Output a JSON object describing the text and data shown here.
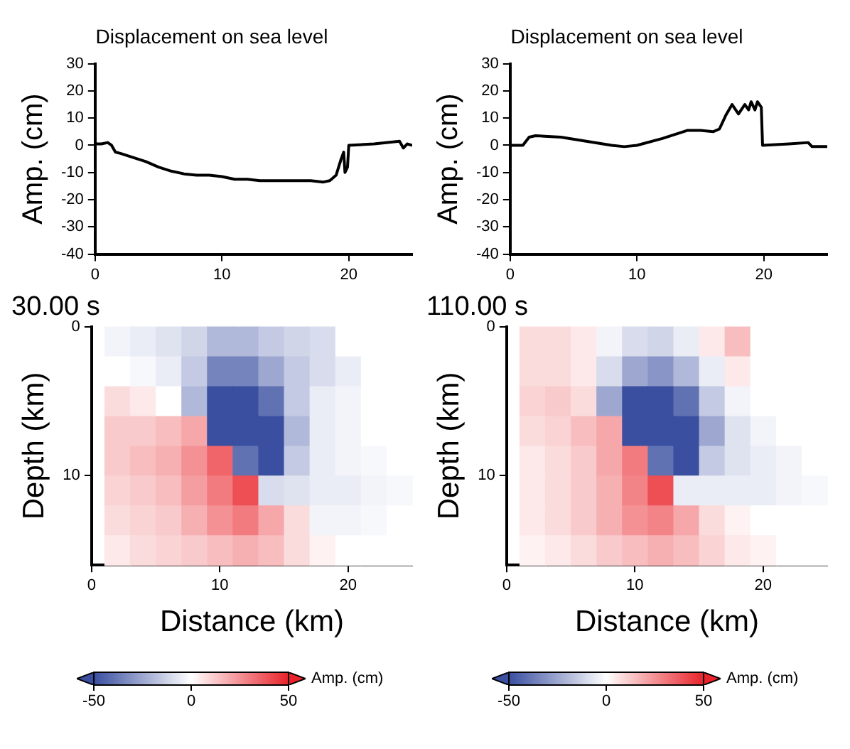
{
  "chart_data": [
    {
      "type": "line",
      "title": "Displacement on sea level",
      "ylabel": "Amp. (cm)",
      "color": "#000000",
      "xlim": [
        0,
        25
      ],
      "xticks": [
        0,
        10,
        20
      ],
      "ylim": [
        -40,
        30
      ],
      "yticks": [
        -40,
        -30,
        -20,
        -10,
        0,
        10,
        20,
        30
      ],
      "x": [
        0,
        0.5,
        1,
        1.3,
        1.6,
        2,
        3,
        4,
        5,
        6,
        7,
        8,
        9,
        10,
        11,
        12,
        13,
        14,
        15,
        16,
        17,
        18,
        18.5,
        19,
        19.4,
        19.6,
        19.7,
        19.9,
        20,
        22,
        24,
        24.3,
        24.6,
        25
      ],
      "values": [
        0.5,
        0.5,
        1,
        0,
        -2.5,
        -3,
        -4.5,
        -6,
        -8,
        -9.5,
        -10.5,
        -11,
        -11,
        -11.5,
        -12.5,
        -12.5,
        -13,
        -13,
        -13,
        -13,
        -13,
        -13.5,
        -13,
        -11,
        -5,
        -2.5,
        -10,
        -8,
        0,
        0.5,
        1.5,
        -1,
        0.5,
        0
      ]
    },
    {
      "type": "line",
      "title": "Displacement on sea level",
      "ylabel": "Amp. (cm)",
      "color": "#000000",
      "xlim": [
        0,
        25
      ],
      "xticks": [
        0,
        10,
        20
      ],
      "ylim": [
        -40,
        30
      ],
      "yticks": [
        -40,
        -30,
        -20,
        -10,
        0,
        10,
        20,
        30
      ],
      "x": [
        0,
        1,
        1.5,
        2,
        4,
        6,
        8,
        9,
        10,
        12,
        14,
        15,
        16,
        16.5,
        17,
        17.5,
        18,
        18.5,
        18.8,
        19,
        19.3,
        19.5,
        19.8,
        19.9,
        22,
        23.5,
        23.8,
        25
      ],
      "values": [
        0,
        0,
        3,
        3.5,
        3,
        1.5,
        0,
        -0.5,
        0,
        2.5,
        5.5,
        5.5,
        5,
        6,
        11,
        15,
        11.5,
        15,
        13,
        16,
        13,
        16,
        14,
        0,
        0.5,
        1,
        -0.5,
        -0.5
      ]
    },
    {
      "type": "heatmap",
      "title": "30.00 s",
      "xlabel": "Distance (km)",
      "ylabel": "Depth (km)",
      "clabel": "Amp. (cm)",
      "clim": [
        -50,
        50
      ],
      "cticks": [
        -50,
        0,
        50
      ],
      "xlim": [
        0,
        25
      ],
      "xticks": [
        0,
        10,
        20
      ],
      "ylim": [
        16,
        0
      ],
      "yticks": [
        0,
        10
      ],
      "x": [
        2,
        4,
        6,
        8,
        10,
        12,
        14,
        16,
        18,
        20,
        22,
        24
      ],
      "cells": [
        [
          -3,
          -5,
          -8,
          -12,
          -20,
          -20,
          -15,
          -12,
          -10,
          0,
          0,
          0
        ],
        [
          0,
          -2,
          -5,
          -15,
          -35,
          -35,
          -25,
          -15,
          -10,
          -5,
          0,
          0
        ],
        [
          8,
          5,
          0,
          -20,
          -50,
          -50,
          -40,
          -15,
          -5,
          -3,
          0,
          0
        ],
        [
          12,
          12,
          15,
          20,
          -50,
          -50,
          -50,
          -20,
          -5,
          -3,
          0,
          0
        ],
        [
          12,
          15,
          18,
          25,
          35,
          -40,
          -50,
          -15,
          -5,
          -3,
          -2,
          0
        ],
        [
          10,
          12,
          15,
          22,
          30,
          40,
          -10,
          -8,
          -5,
          -5,
          -3,
          -2
        ],
        [
          8,
          10,
          12,
          18,
          25,
          30,
          20,
          8,
          -3,
          -3,
          -2,
          0
        ],
        [
          5,
          8,
          10,
          12,
          15,
          18,
          15,
          8,
          3,
          0,
          0,
          0
        ]
      ]
    },
    {
      "type": "heatmap",
      "title": "110.00 s",
      "xlabel": "Distance (km)",
      "ylabel": "Depth (km)",
      "clabel": "Amp. (cm)",
      "clim": [
        -50,
        50
      ],
      "cticks": [
        -50,
        0,
        50
      ],
      "xlim": [
        0,
        25
      ],
      "xticks": [
        0,
        10,
        20
      ],
      "ylim": [
        16,
        0
      ],
      "yticks": [
        0,
        10
      ],
      "x": [
        2,
        4,
        6,
        8,
        10,
        12,
        14,
        16,
        18,
        20,
        22,
        24
      ],
      "cells": [
        [
          8,
          8,
          5,
          -3,
          -10,
          -12,
          -5,
          5,
          15,
          0,
          0,
          0
        ],
        [
          8,
          8,
          5,
          -10,
          -25,
          -30,
          -20,
          -5,
          5,
          0,
          0,
          0
        ],
        [
          10,
          12,
          8,
          -25,
          -50,
          -50,
          -40,
          -15,
          -3,
          0,
          0,
          0
        ],
        [
          8,
          10,
          15,
          20,
          -50,
          -50,
          -50,
          -25,
          -8,
          -3,
          0,
          0
        ],
        [
          5,
          8,
          12,
          20,
          30,
          -40,
          -50,
          -15,
          -8,
          -5,
          -3,
          0
        ],
        [
          5,
          8,
          12,
          18,
          28,
          40,
          -5,
          -5,
          -5,
          -5,
          -3,
          -2
        ],
        [
          5,
          8,
          12,
          18,
          25,
          28,
          20,
          8,
          3,
          0,
          0,
          0
        ],
        [
          3,
          5,
          8,
          12,
          15,
          18,
          15,
          10,
          5,
          3,
          0,
          0
        ]
      ]
    }
  ]
}
